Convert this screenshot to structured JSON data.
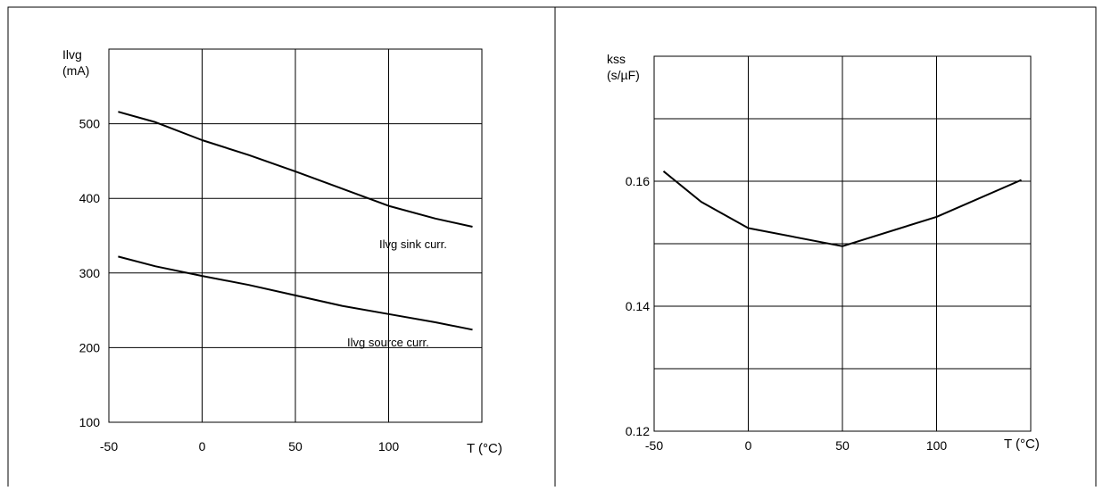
{
  "chart_data": [
    {
      "type": "line",
      "ylabel_line1": "Ilvg",
      "ylabel_line2": "(mA)",
      "xlabel": "T (°C)",
      "x_ticks": [
        "-50",
        "0",
        "50",
        "100"
      ],
      "y_ticks": [
        "100",
        "200",
        "300",
        "400",
        "500"
      ],
      "xlim": [
        -50,
        150
      ],
      "ylim": [
        100,
        600
      ],
      "grid": true,
      "series": [
        {
          "name": "Ilvg sink curr.",
          "x": [
            -45,
            -25,
            0,
            25,
            50,
            75,
            100,
            125,
            145
          ],
          "y": [
            516,
            502,
            478,
            458,
            436,
            413,
            390,
            373,
            362
          ]
        },
        {
          "name": "Ilvg source curr.",
          "x": [
            -45,
            -25,
            0,
            25,
            50,
            75,
            100,
            125,
            145
          ],
          "y": [
            322,
            309,
            296,
            284,
            270,
            256,
            245,
            234,
            224
          ]
        }
      ]
    },
    {
      "type": "line",
      "ylabel_line1": "kss",
      "ylabel_line2": "(s/µF)",
      "xlabel": "T (°C)",
      "x_ticks": [
        "-50",
        "0",
        "50",
        "100"
      ],
      "y_ticks": [
        "0.12",
        "0.14",
        "0.16"
      ],
      "xlim": [
        -50,
        150
      ],
      "ylim": [
        0.12,
        0.18
      ],
      "grid": true,
      "series": [
        {
          "x": [
            -45,
            -25,
            0,
            50,
            100,
            145
          ],
          "y": [
            0.1616,
            0.1567,
            0.1525,
            0.1496,
            0.1543,
            0.1602
          ]
        }
      ]
    }
  ]
}
